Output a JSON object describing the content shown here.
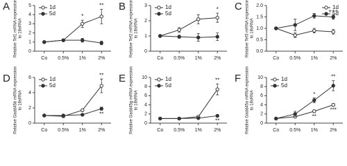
{
  "chart_data": [
    {
      "type": "line",
      "panel": "A",
      "ylabel": [
        "Relative Tef1 mRNA expression",
        "to 18sRNA"
      ],
      "categories": [
        "Co",
        "0.5%",
        "1%",
        "2%"
      ],
      "ylim": [
        0,
        5
      ],
      "yticks": [
        0,
        1,
        2,
        3,
        4,
        5
      ],
      "legend": "upper left",
      "series": [
        {
          "name": "1d",
          "color": "#333333",
          "marker": "open",
          "values": [
            1,
            1.2,
            3.0,
            3.8
          ],
          "errors": [
            0,
            0.1,
            0.4,
            0.8
          ],
          "notes": [
            null,
            null,
            "*",
            "**"
          ]
        },
        {
          "name": "5d",
          "color": "#333333",
          "marker": "filled",
          "values": [
            1,
            1.2,
            1.2,
            0.9
          ],
          "errors": [
            0,
            0.1,
            0.2,
            0.2
          ],
          "notes": [
            null,
            null,
            null,
            null
          ]
        }
      ]
    },
    {
      "type": "line",
      "panel": "B",
      "ylabel": [
        "Relative Tef2 mRNA expression",
        "to 18sRNA"
      ],
      "categories": [
        "Co",
        "0.5%",
        "1%",
        "2%"
      ],
      "ylim": [
        0,
        3
      ],
      "yticks": [
        0,
        1,
        2,
        3
      ],
      "legend": "upper left",
      "series": [
        {
          "name": "1d",
          "color": "#333333",
          "marker": "open",
          "values": [
            1,
            1.4,
            2.1,
            2.2
          ],
          "errors": [
            0,
            0.15,
            0.3,
            0.3
          ],
          "notes": [
            null,
            null,
            null,
            "*"
          ]
        },
        {
          "name": "5d",
          "color": "#333333",
          "marker": "filled",
          "values": [
            1,
            0.95,
            0.9,
            0.95
          ],
          "errors": [
            0,
            0.1,
            0.25,
            0.25
          ],
          "notes": [
            null,
            null,
            null,
            null
          ]
        }
      ]
    },
    {
      "type": "line",
      "panel": "C",
      "ylabel": [
        "Relative Tef3 mRNA expression",
        "to 18sRNA"
      ],
      "categories": [
        "Co",
        "0.5%",
        "1%",
        "2%"
      ],
      "ylim": [
        0,
        2
      ],
      "legend": "upper right",
      "yticks": [
        {
          "value": 0,
          "label": "0.0"
        },
        {
          "value": 0.5,
          "label": "0.5"
        },
        {
          "value": 1,
          "label": "1.0"
        },
        {
          "value": 1.5,
          "label": "1.5"
        },
        {
          "value": 2,
          "label": "2.0"
        }
      ],
      "series": [
        {
          "name": "1d",
          "color": "#333333",
          "marker": "open",
          "values": [
            1,
            0.7,
            0.9,
            0.85
          ],
          "errors": [
            0,
            0.1,
            0.1,
            0.1
          ],
          "notes": [
            null,
            null,
            null,
            null
          ]
        },
        {
          "name": "5d",
          "color": "#333333",
          "marker": "filled",
          "values": [
            1,
            1.15,
            1.55,
            1.5
          ],
          "errors": [
            0,
            0.25,
            0.1,
            0.1
          ],
          "notes": [
            null,
            null,
            null,
            "+++"
          ]
        }
      ]
    },
    {
      "type": "line",
      "panel": "D",
      "ylabel": [
        "Relative Gadd45b mRNA expression",
        "to 18sRNA"
      ],
      "categories": [
        "Co",
        "0.5%",
        "1%",
        "2%"
      ],
      "ylim": [
        0,
        6
      ],
      "yticks": [
        0,
        2,
        4,
        6
      ],
      "legend": "upper left",
      "series": [
        {
          "name": "1d",
          "color": "#333333",
          "marker": "open",
          "values": [
            1,
            0.9,
            1.7,
            4.9
          ],
          "errors": [
            0,
            0.1,
            0.1,
            0.9
          ],
          "notes": [
            null,
            null,
            null,
            "**"
          ]
        },
        {
          "name": "5d",
          "color": "#333333",
          "marker": "filled",
          "values": [
            1,
            1,
            1.1,
            1.9
          ],
          "errors": [
            0,
            0.1,
            0.1,
            0.2
          ],
          "notes": [
            null,
            null,
            null,
            "**"
          ]
        }
      ]
    },
    {
      "type": "line",
      "panel": "E",
      "ylabel": [
        "Relative Gadd45g mRNA expression",
        "to 18sRNA"
      ],
      "categories": [
        "Co",
        "0.5%",
        "1%",
        "2%"
      ],
      "ylim": [
        0,
        10
      ],
      "yticks": [
        0,
        2,
        4,
        6,
        8,
        10
      ],
      "legend": "upper left",
      "series": [
        {
          "name": "1d",
          "color": "#333333",
          "marker": "open",
          "values": [
            1,
            1,
            1.4,
            7.4
          ],
          "errors": [
            0,
            0.1,
            0.2,
            1.2
          ],
          "notes": [
            null,
            null,
            null,
            "**"
          ]
        },
        {
          "name": "5d",
          "color": "#333333",
          "marker": "filled",
          "values": [
            1,
            1,
            1.1,
            1.6
          ],
          "errors": [
            0,
            0.1,
            0.1,
            0.2
          ],
          "notes": [
            null,
            null,
            null,
            "**"
          ]
        }
      ]
    },
    {
      "type": "line",
      "panel": "F",
      "ylabel": [
        "Relative Gadd45a mRNA expression",
        "to 18sRNA"
      ],
      "categories": [
        "Co",
        "0.5%",
        "1%",
        "2%"
      ],
      "ylim": [
        0,
        10
      ],
      "yticks": [
        0,
        2,
        4,
        6,
        8,
        10
      ],
      "legend": "upper left",
      "series": [
        {
          "name": "1d",
          "color": "#333333",
          "marker": "open",
          "values": [
            1,
            1.4,
            2.6,
            4.0
          ],
          "errors": [
            0,
            0.2,
            0.3,
            0.3
          ],
          "notes": [
            null,
            null,
            "**",
            "***"
          ]
        },
        {
          "name": "5d",
          "color": "#333333",
          "marker": "filled",
          "values": [
            1,
            2.0,
            5.0,
            8.2
          ],
          "errors": [
            0,
            0.6,
            0.5,
            1.1
          ],
          "notes": [
            null,
            null,
            "*",
            "**"
          ]
        }
      ]
    }
  ]
}
